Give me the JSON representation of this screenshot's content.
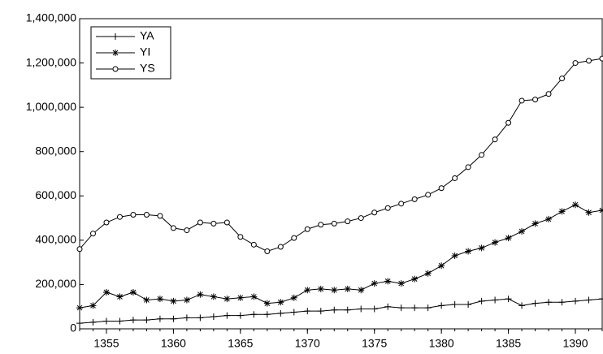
{
  "chart_data": {
    "type": "line",
    "x": [
      1353,
      1354,
      1355,
      1356,
      1357,
      1358,
      1359,
      1360,
      1361,
      1362,
      1363,
      1364,
      1365,
      1366,
      1367,
      1368,
      1369,
      1370,
      1371,
      1372,
      1373,
      1374,
      1375,
      1376,
      1377,
      1378,
      1379,
      1380,
      1381,
      1382,
      1383,
      1384,
      1385,
      1386,
      1387,
      1388,
      1389,
      1390,
      1391,
      1392
    ],
    "series": [
      {
        "name": "YA",
        "color": "#000000",
        "marker": "plus",
        "values": [
          25000,
          30000,
          35000,
          35000,
          40000,
          40000,
          45000,
          45000,
          50000,
          50000,
          55000,
          60000,
          60000,
          65000,
          65000,
          70000,
          75000,
          80000,
          80000,
          85000,
          85000,
          90000,
          90000,
          100000,
          95000,
          95000,
          95000,
          105000,
          110000,
          110000,
          125000,
          130000,
          135000,
          105000,
          115000,
          120000,
          120000,
          125000,
          130000,
          135000
        ]
      },
      {
        "name": "YI",
        "color": "#000000",
        "marker": "star",
        "values": [
          95000,
          105000,
          165000,
          145000,
          165000,
          130000,
          135000,
          125000,
          130000,
          155000,
          145000,
          135000,
          140000,
          145000,
          115000,
          120000,
          140000,
          175000,
          180000,
          175000,
          180000,
          175000,
          205000,
          215000,
          205000,
          225000,
          250000,
          285000,
          330000,
          350000,
          365000,
          390000,
          410000,
          440000,
          475000,
          495000,
          530000,
          560000,
          525000,
          535000
        ]
      },
      {
        "name": "YS",
        "color": "#000000",
        "marker": "circle",
        "values": [
          360000,
          430000,
          480000,
          505000,
          515000,
          515000,
          510000,
          455000,
          445000,
          480000,
          475000,
          480000,
          415000,
          380000,
          350000,
          370000,
          410000,
          450000,
          470000,
          475000,
          485000,
          500000,
          525000,
          545000,
          565000,
          585000,
          605000,
          635000,
          680000,
          730000,
          785000,
          855000,
          930000,
          1030000,
          1035000,
          1060000,
          1130000,
          1200000,
          1210000,
          1220000
        ]
      }
    ],
    "xlim": [
      1353,
      1392
    ],
    "xticks": [
      1355,
      1360,
      1365,
      1370,
      1375,
      1380,
      1385,
      1390
    ],
    "ylim": [
      0,
      1400000
    ],
    "yticks": [
      0,
      {
        "value": 200000,
        "label": "200,000"
      },
      {
        "value": 400000,
        "label": "400,000"
      },
      {
        "value": 600000,
        "label": "600,000"
      },
      {
        "value": 800000,
        "label": "800,000"
      },
      {
        "value": 1000000,
        "label": "1,000,000"
      },
      {
        "value": 1200000,
        "label": "1,200,000"
      },
      {
        "value": 1400000,
        "label": "1,400,000"
      }
    ],
    "legend": "top-left"
  }
}
